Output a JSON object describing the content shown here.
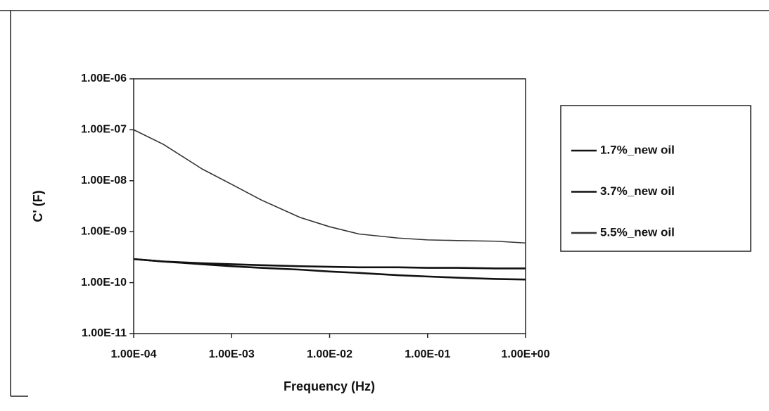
{
  "chart_data": {
    "type": "line",
    "x_label": "Frequency (Hz)",
    "y_label": "C' (F)",
    "xlog": true,
    "ylog": true,
    "legend": "right",
    "x": [
      0.0001,
      0.0002,
      0.0005,
      0.001,
      0.002,
      0.005,
      0.01,
      0.02,
      0.05,
      0.1,
      0.2,
      0.5,
      1
    ],
    "series": [
      {
        "name": "1.7%_new oil",
        "color": "#111111",
        "values": [
          2.9e-10,
          2.6e-10,
          2.3e-10,
          2.1e-10,
          1.95e-10,
          1.8e-10,
          1.65e-10,
          1.55e-10,
          1.4e-10,
          1.32e-10,
          1.25e-10,
          1.18e-10,
          1.15e-10
        ]
      },
      {
        "name": "3.7%_new oil",
        "color": "#111111",
        "values": [
          2.9e-10,
          2.6e-10,
          2.4e-10,
          2.3e-10,
          2.2e-10,
          2.1e-10,
          2.05e-10,
          2e-10,
          2e-10,
          1.95e-10,
          1.95e-10,
          1.9e-10,
          1.9e-10
        ]
      },
      {
        "name": "5.5%_new oil",
        "color": "#333333",
        "values": [
          1e-07,
          5.2e-08,
          1.7e-08,
          8.5e-09,
          4.2e-09,
          1.9e-09,
          1.25e-09,
          9e-10,
          7.5e-10,
          6.9e-10,
          6.7e-10,
          6.5e-10,
          6e-10
        ]
      }
    ],
    "xlim": [
      0.0001,
      1
    ],
    "xticks": [
      {
        "value": 0.0001,
        "label": "1.00E-04"
      },
      {
        "value": 0.001,
        "label": "1.00E-03"
      },
      {
        "value": 0.01,
        "label": "1.00E-02"
      },
      {
        "value": 0.1,
        "label": "1.00E-01"
      },
      {
        "value": 1,
        "label": "1.00E+00"
      }
    ],
    "ylim": [
      1e-11,
      1e-06
    ],
    "yticks": [
      {
        "value": 1e-11,
        "label": "1.00E-11"
      },
      {
        "value": 1e-10,
        "label": "1.00E-10"
      },
      {
        "value": 1e-09,
        "label": "1.00E-09"
      },
      {
        "value": 1e-08,
        "label": "1.00E-08"
      },
      {
        "value": 1e-07,
        "label": "1.00E-07"
      },
      {
        "value": 1e-06,
        "label": "1.00E-06"
      }
    ]
  }
}
